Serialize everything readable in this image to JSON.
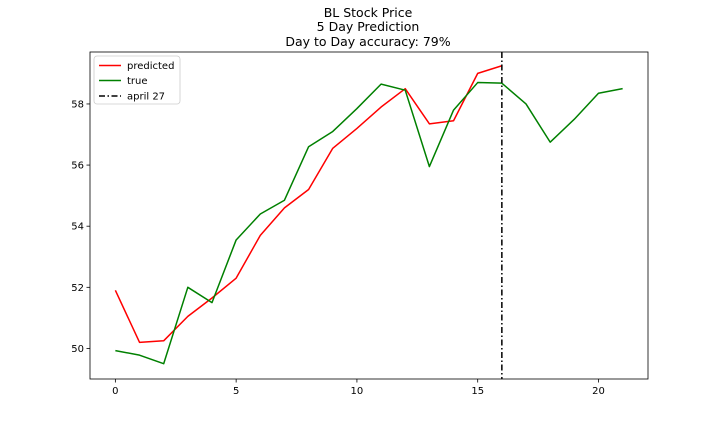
{
  "chart_data": {
    "type": "line",
    "title": "BL Stock Price",
    "subtitle": "5 Day Prediction",
    "accuracy_line": "Day to Day accuracy: 79%",
    "xlabel": "",
    "ylabel": "",
    "xlim": [
      -1.05,
      22.05
    ],
    "ylim": [
      49.0,
      59.7
    ],
    "xticks": [
      0,
      5,
      10,
      15,
      20
    ],
    "yticks": [
      50,
      52,
      54,
      56,
      58
    ],
    "grid": false,
    "legend_position": "top-left",
    "series": [
      {
        "name": "predicted",
        "color": "#ff0000",
        "x": [
          0,
          1,
          2,
          3,
          4,
          5,
          6,
          7,
          8,
          9,
          10,
          11,
          12,
          13,
          14,
          15,
          16
        ],
        "y": [
          51.9,
          50.2,
          50.25,
          51.05,
          51.65,
          52.3,
          53.7,
          54.6,
          55.2,
          56.55,
          57.2,
          57.9,
          58.5,
          57.35,
          57.45,
          59.0,
          59.25
        ]
      },
      {
        "name": "true",
        "color": "#008000",
        "x": [
          0,
          1,
          2,
          3,
          4,
          5,
          6,
          7,
          8,
          9,
          10,
          11,
          12,
          13,
          14,
          15,
          16,
          17,
          18,
          19,
          20,
          21
        ],
        "y": [
          49.93,
          49.78,
          49.5,
          52.0,
          51.5,
          53.55,
          54.4,
          54.85,
          56.6,
          57.1,
          57.85,
          58.65,
          58.45,
          55.95,
          57.8,
          58.7,
          58.68,
          58.0,
          56.75,
          57.5,
          58.35,
          58.5
        ]
      }
    ],
    "vline": {
      "name": "april 27",
      "x": 16,
      "color": "#000000",
      "style": "dashdot"
    }
  }
}
